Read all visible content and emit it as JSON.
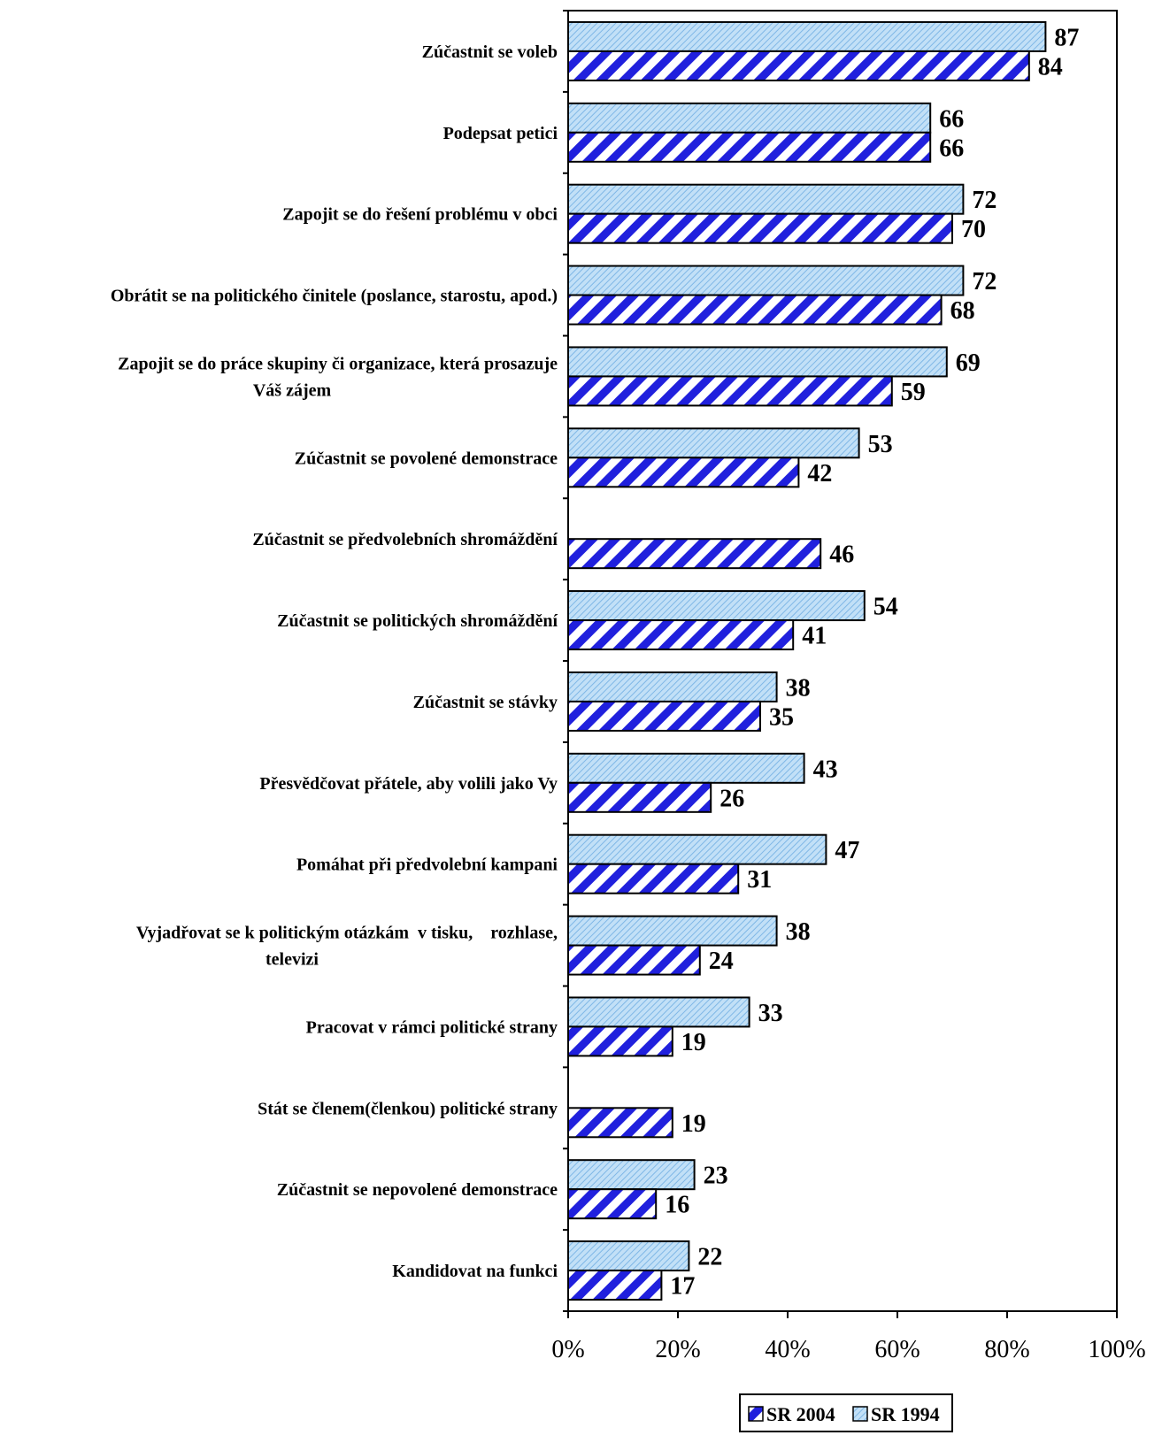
{
  "chart_data": {
    "type": "bar",
    "orientation": "horizontal",
    "categories": [
      [
        "Zúčastnit se voleb"
      ],
      [
        "Podepsat petici"
      ],
      [
        "Zapojit se do řešení problému v obci"
      ],
      [
        "Obrátit se na politického činitele (poslance, starostu, apod.)"
      ],
      [
        "Zapojit se do práce skupiny či organizace, která prosazuje",
        "Váš zájem"
      ],
      [
        "Zúčastnit se povolené demonstrace"
      ],
      [
        "Zúčastnit se předvolebních shromáždění"
      ],
      [
        "Zúčastnit se politických shromáždění"
      ],
      [
        "Zúčastnit se stávky"
      ],
      [
        "Přesvědčovat přátele, aby volili jako Vy"
      ],
      [
        "Pomáhat při předvolební kampani"
      ],
      [
        "Vyjadřovat se k politickým otázkám  v tisku,    rozhlase,",
        "televizi"
      ],
      [
        "Pracovat v rámci politické strany"
      ],
      [
        "Stát se členem(členkou) politické strany"
      ],
      [
        "Zúčastnit se nepovolené demonstrace"
      ],
      [
        "Kandidovat na funkci"
      ]
    ],
    "series": [
      {
        "name": "SR 1994",
        "color": "#a9d2f2",
        "pattern": "fine-diagonal",
        "values": [
          87,
          66,
          72,
          72,
          69,
          53,
          null,
          54,
          38,
          43,
          47,
          38,
          33,
          null,
          23,
          22
        ]
      },
      {
        "name": "SR 2004",
        "color": "#2222dd",
        "pattern": "wide-diagonal",
        "values": [
          84,
          66,
          70,
          68,
          59,
          42,
          46,
          41,
          35,
          26,
          31,
          24,
          19,
          19,
          16,
          17
        ]
      }
    ],
    "xlim": [
      0,
      100
    ],
    "x_ticks": [
      "0%",
      "20%",
      "40%",
      "60%",
      "80%",
      "100%"
    ],
    "grid": false,
    "legend_position": "bottom-right",
    "legend": [
      "SR 2004",
      "SR 1994"
    ]
  }
}
